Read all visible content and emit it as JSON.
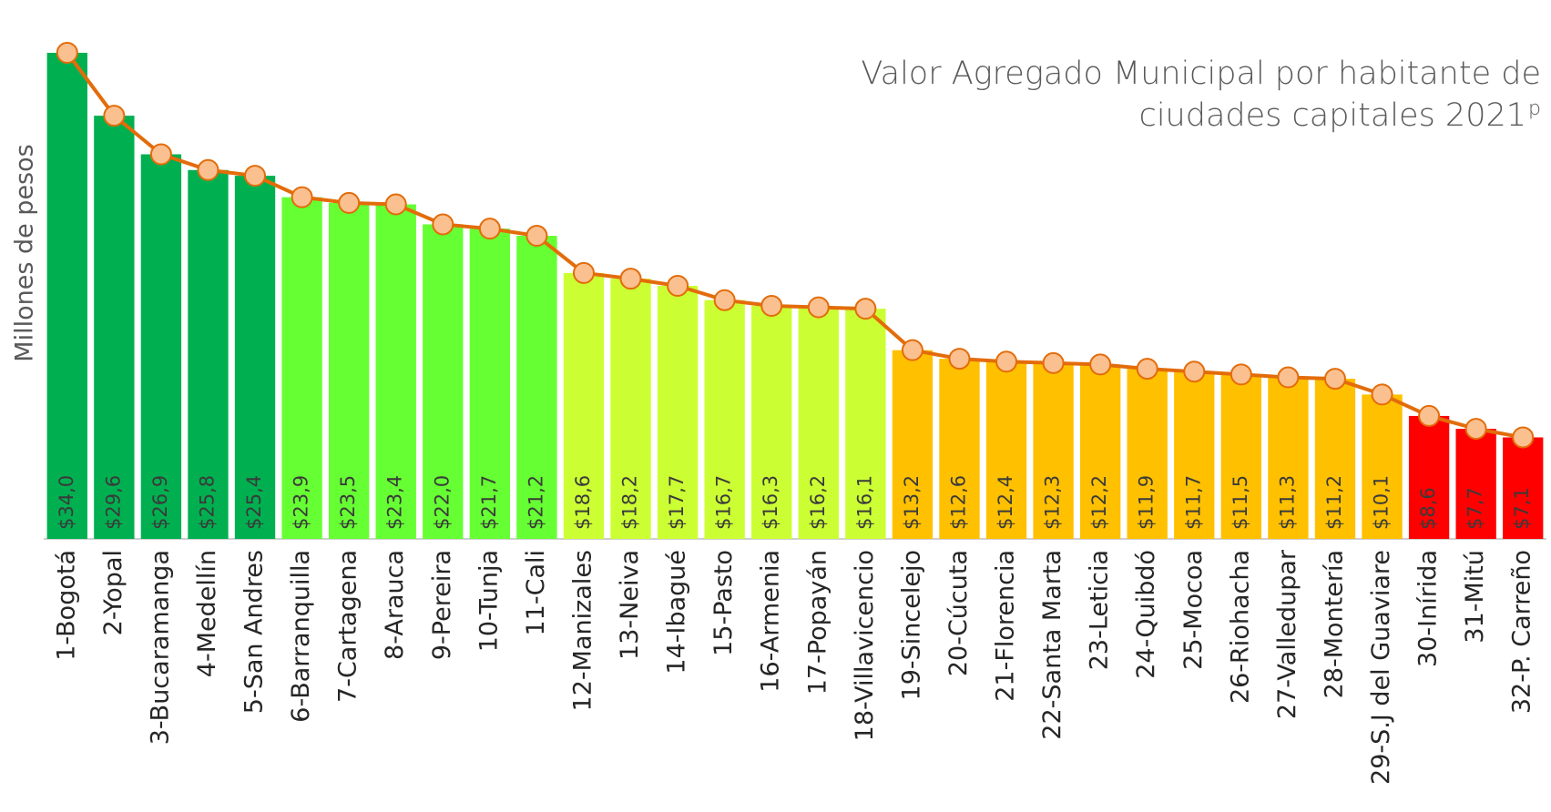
{
  "chart_data": {
    "type": "bar",
    "title_lines": [
      "Valor Agregado Municipal por habitante de",
      "ciudades capitales 2021"
    ],
    "title_superscript": "p",
    "ylabel": "Millones  de pesos",
    "categories": [
      "1-Bogotá",
      "2-Yopal",
      "3-Bucaramanga",
      "4-Medellín",
      "5-San Andres",
      "6-Barranquilla",
      "7-Cartagena",
      "8-Arauca",
      "9-Pereira",
      "10-Tunja",
      "11-Cali",
      "12-Manizales",
      "13-Neiva",
      "14-Ibagué",
      "15-Pasto",
      "16-Armenia",
      "17-Popayán",
      "18-Villavicencio",
      "19-Sincelejo",
      "20-Cúcuta",
      "21-Florencia",
      "22-Santa Marta",
      "23-Leticia",
      "24-Quibdó",
      "25-Mocoa",
      "26-Riohacha",
      "27-Valledupar",
      "28-Montería",
      "29-S.J del Guaviare",
      "30-Inírida",
      "31-Mitú",
      "32-P. Carreño"
    ],
    "values": [
      34.0,
      29.6,
      26.9,
      25.8,
      25.4,
      23.9,
      23.5,
      23.4,
      22.0,
      21.7,
      21.2,
      18.6,
      18.2,
      17.7,
      16.7,
      16.3,
      16.2,
      16.1,
      13.2,
      12.6,
      12.4,
      12.3,
      12.2,
      11.9,
      11.7,
      11.5,
      11.3,
      11.2,
      10.1,
      8.6,
      7.7,
      7.1
    ],
    "value_labels": [
      "$34,0",
      "$29,6",
      "$26,9",
      "$25,8",
      "$25,4",
      "$23,9",
      "$23,5",
      "$23,4",
      "$22,0",
      "$21,7",
      "$21,2",
      "$18,6",
      "$18,2",
      "$17,7",
      "$16,7",
      "$16,3",
      "$16,2",
      "$16,1",
      "$13,2",
      "$12,6",
      "$12,4",
      "$12,3",
      "$12,2",
      "$11,9",
      "$11,7",
      "$11,5",
      "$11,3",
      "$11,2",
      "$10,1",
      "$8,6",
      "$7,7",
      "$7,1"
    ],
    "colors": [
      "#00b050",
      "#00b050",
      "#00b050",
      "#00b050",
      "#00b050",
      "#66ff33",
      "#66ff33",
      "#66ff33",
      "#66ff33",
      "#66ff33",
      "#66ff33",
      "#ccff33",
      "#ccff33",
      "#ccff33",
      "#ccff33",
      "#ccff33",
      "#ccff33",
      "#ccff33",
      "#ffc000",
      "#ffc000",
      "#ffc000",
      "#ffc000",
      "#ffc000",
      "#ffc000",
      "#ffc000",
      "#ffc000",
      "#ffc000",
      "#ffc000",
      "#ffc000",
      "#ff0000",
      "#ff0000",
      "#ff0000"
    ],
    "line_color": "#e36c0a",
    "marker_fill": "#fac090",
    "ylim": [
      0,
      34
    ]
  }
}
